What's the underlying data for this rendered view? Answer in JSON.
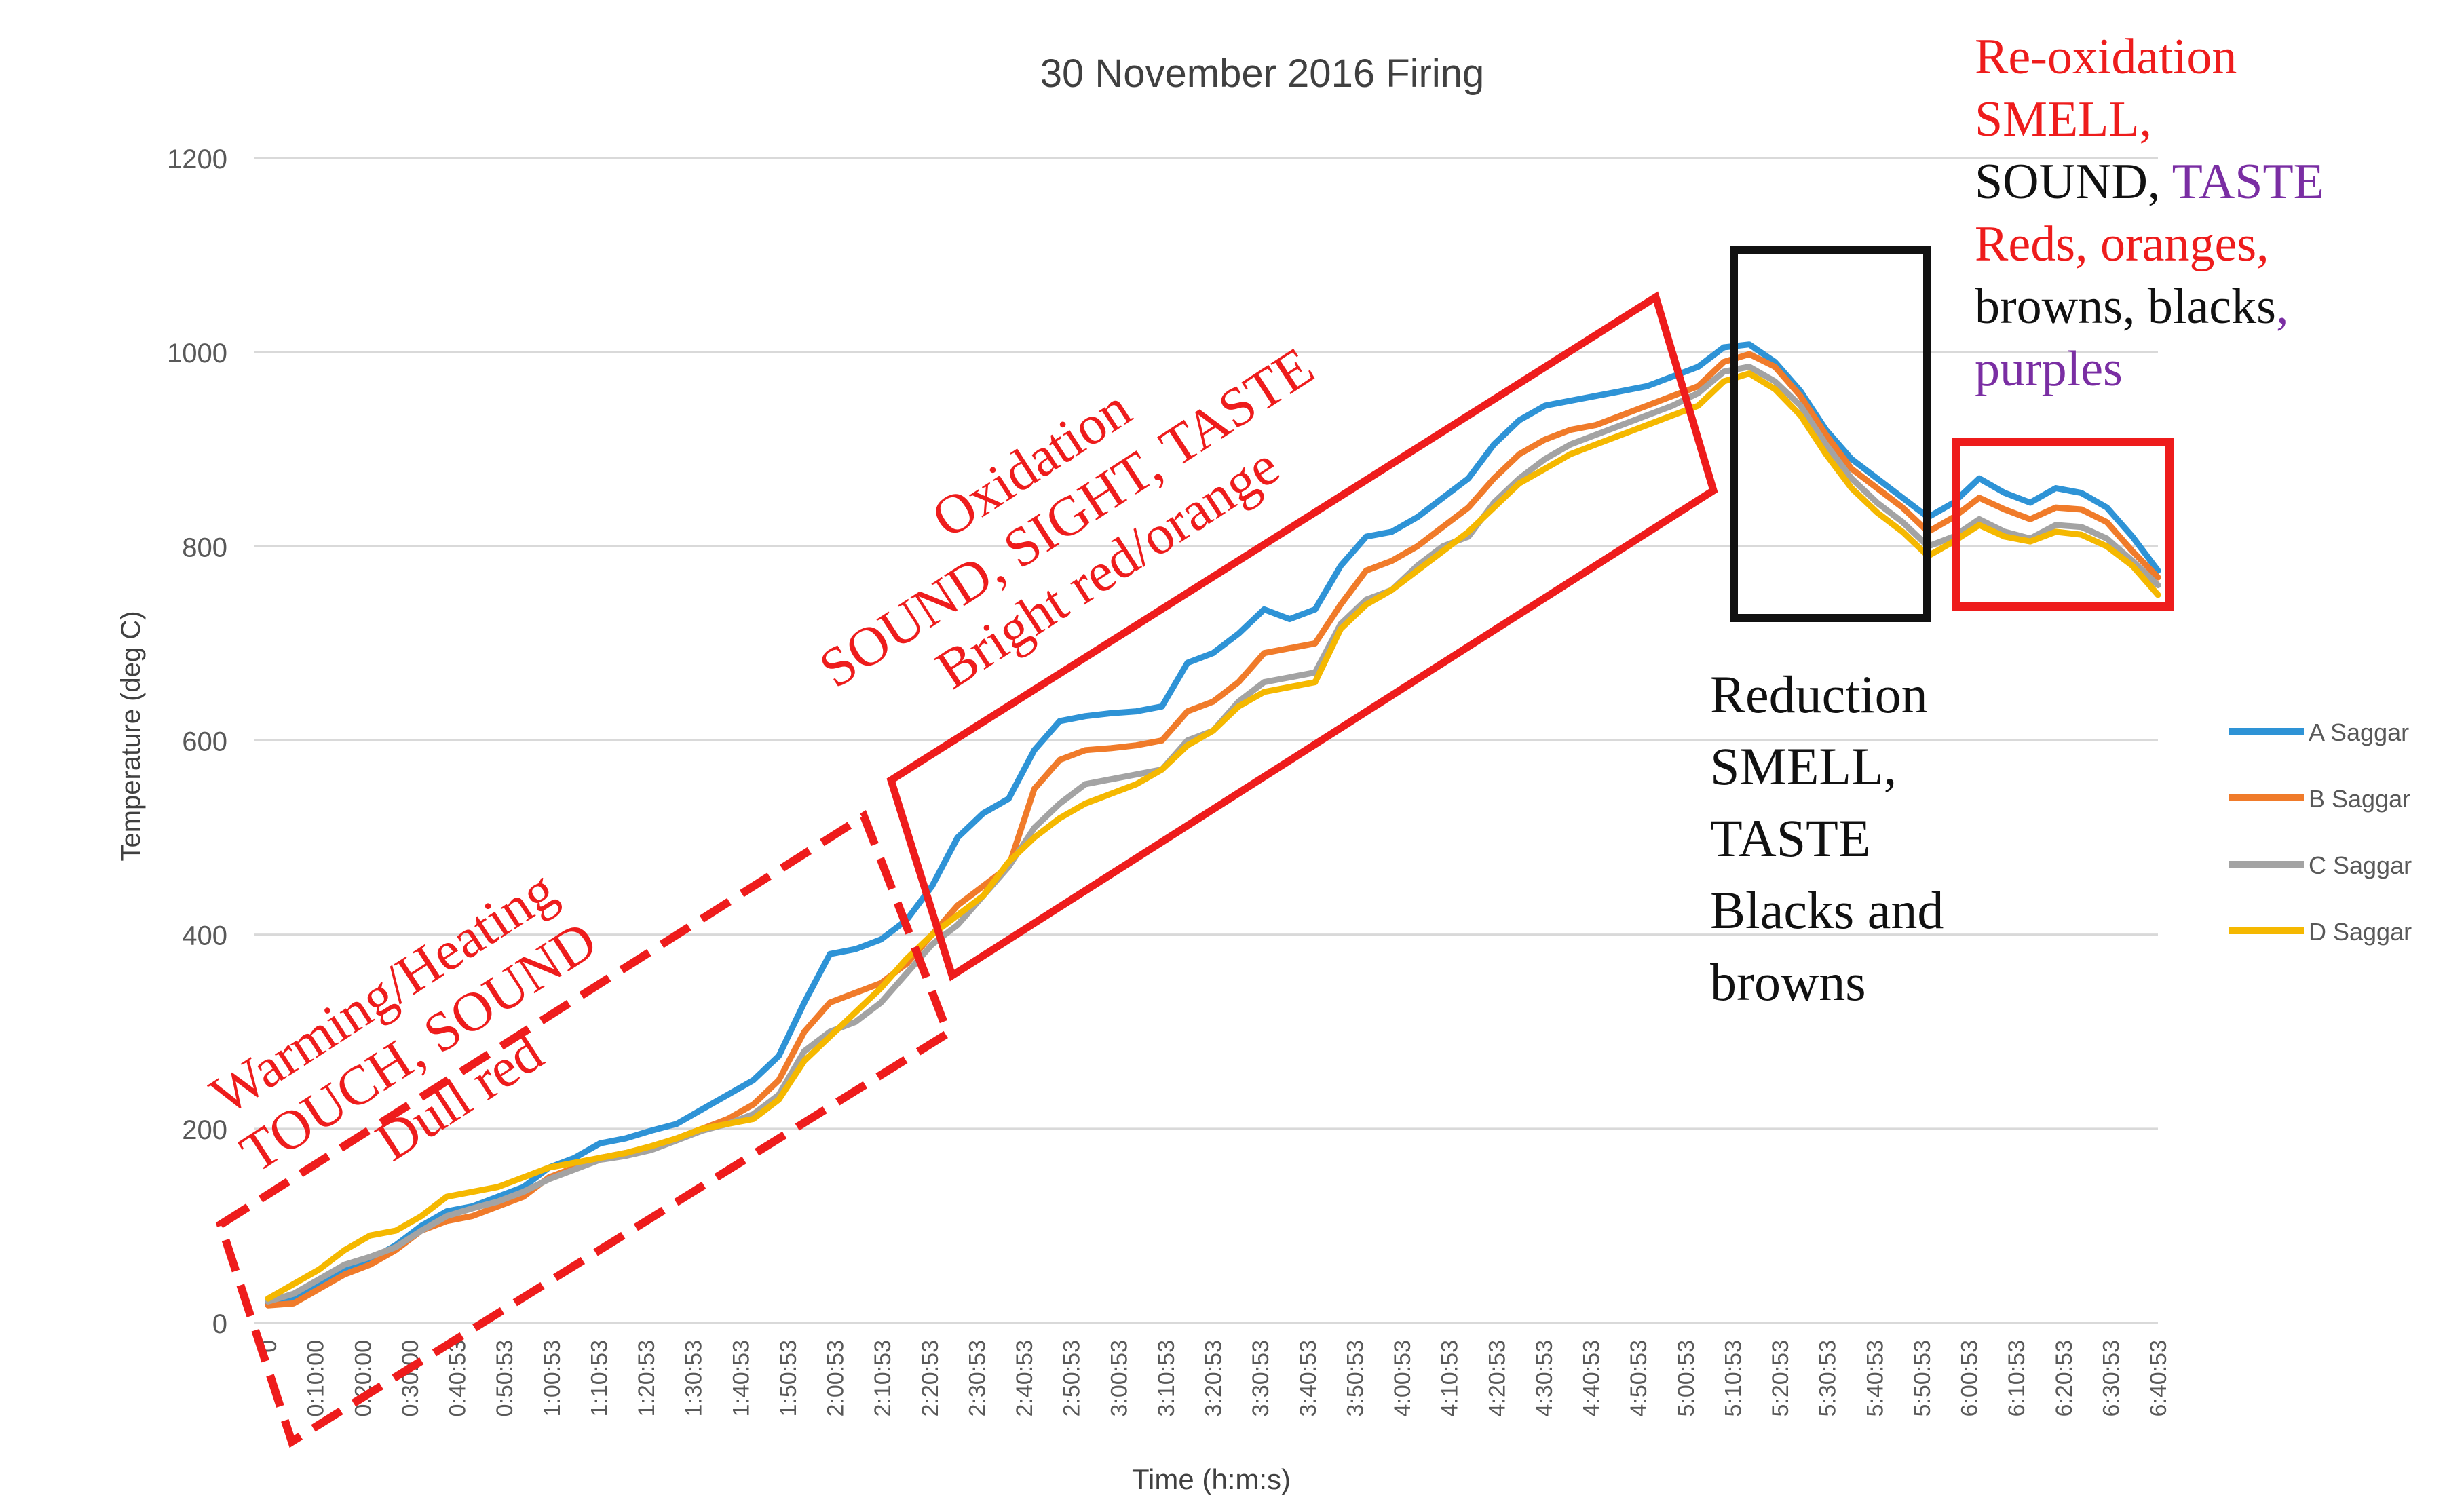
{
  "chart_data": {
    "type": "line",
    "title": "30 November 2016 Firing",
    "xlabel": "Time (h:m:s)",
    "ylabel": "Temperature (deg C)",
    "ylim": [
      0,
      1200
    ],
    "yticks": [
      0,
      200,
      400,
      600,
      800,
      1000,
      1200
    ],
    "grid": true,
    "legend_position": "right",
    "x_tick_labels": [
      "0",
      "0:10:00",
      "0:20:00",
      "0:30:00",
      "0:40:53",
      "0:50:53",
      "1:00:53",
      "1:10:53",
      "1:20:53",
      "1:30:53",
      "1:40:53",
      "1:50:53",
      "2:00:53",
      "2:10:53",
      "2:20:53",
      "2:30:53",
      "2:40:53",
      "2:50:53",
      "3:00:53",
      "3:10:53",
      "3:20:53",
      "3:30:53",
      "3:40:53",
      "3:50:53",
      "4:00:53",
      "4:10:53",
      "4:20:53",
      "4:30:53",
      "4:40:53",
      "4:50:53",
      "5:00:53",
      "5:10:53",
      "5:20:53",
      "5:30:53",
      "5:40:53",
      "5:50:53",
      "6:00:53",
      "6:10:53",
      "6:20:53",
      "6:30:53",
      "6:40:53"
    ],
    "series": [
      {
        "name": "A Saggar",
        "color": "#2e93d6",
        "values": [
          20,
          25,
          40,
          55,
          65,
          80,
          100,
          115,
          120,
          130,
          140,
          160,
          170,
          185,
          190,
          198,
          205,
          220,
          235,
          250,
          275,
          330,
          380,
          385,
          395,
          415,
          450,
          500,
          525,
          540,
          590,
          620,
          625,
          628,
          630,
          635,
          680,
          690,
          710,
          735,
          725,
          735,
          780,
          810,
          815,
          830,
          850,
          870,
          905,
          930,
          945,
          950,
          955,
          960,
          965,
          975,
          985,
          1005,
          1008,
          990,
          960,
          920,
          890,
          870,
          850,
          830,
          845,
          870,
          855,
          845,
          860,
          855,
          840,
          810,
          775
        ]
      },
      {
        "name": "B Saggar",
        "color": "#f07b2a",
        "values": [
          18,
          20,
          35,
          50,
          60,
          75,
          95,
          105,
          110,
          120,
          130,
          150,
          160,
          170,
          175,
          180,
          190,
          200,
          210,
          225,
          250,
          300,
          330,
          340,
          350,
          370,
          400,
          430,
          450,
          470,
          550,
          580,
          590,
          592,
          595,
          600,
          630,
          640,
          660,
          690,
          695,
          700,
          740,
          775,
          785,
          800,
          820,
          840,
          870,
          895,
          910,
          920,
          925,
          935,
          945,
          955,
          965,
          990,
          998,
          985,
          955,
          915,
          880,
          860,
          840,
          815,
          830,
          850,
          838,
          828,
          840,
          838,
          825,
          795,
          768
        ]
      },
      {
        "name": "C Saggar",
        "color": "#a3a3a3",
        "values": [
          22,
          30,
          45,
          60,
          68,
          78,
          95,
          110,
          118,
          125,
          135,
          148,
          158,
          168,
          172,
          178,
          188,
          198,
          205,
          215,
          235,
          280,
          300,
          310,
          330,
          360,
          390,
          410,
          440,
          470,
          510,
          535,
          555,
          560,
          565,
          570,
          600,
          610,
          640,
          660,
          665,
          670,
          720,
          745,
          755,
          780,
          800,
          810,
          845,
          870,
          890,
          905,
          915,
          925,
          935,
          945,
          958,
          980,
          985,
          970,
          945,
          905,
          870,
          845,
          825,
          800,
          810,
          828,
          815,
          808,
          822,
          820,
          808,
          785,
          760
        ]
      },
      {
        "name": "D Saggar",
        "color": "#f5b800",
        "values": [
          25,
          40,
          55,
          75,
          90,
          95,
          110,
          130,
          135,
          140,
          150,
          160,
          165,
          170,
          175,
          182,
          190,
          200,
          205,
          210,
          230,
          270,
          295,
          320,
          345,
          375,
          400,
          420,
          440,
          475,
          500,
          520,
          535,
          545,
          555,
          570,
          595,
          610,
          635,
          650,
          655,
          660,
          715,
          740,
          755,
          775,
          795,
          815,
          840,
          865,
          880,
          895,
          905,
          915,
          925,
          935,
          945,
          970,
          978,
          962,
          935,
          895,
          860,
          835,
          815,
          790,
          805,
          822,
          810,
          805,
          815,
          812,
          800,
          780,
          750
        ]
      }
    ],
    "annotations": [
      {
        "kind": "dashed-box",
        "color": "#ee1c1c",
        "lines": [
          "Warming/Heating",
          "TOUCH, SOUND",
          "Dull red"
        ]
      },
      {
        "kind": "box",
        "color": "#ee1c1c",
        "lines": [
          "Oxidation",
          "SOUND, SIGHT, TASTE",
          "Bright red/orange"
        ]
      },
      {
        "kind": "box",
        "color": "#111111",
        "lines": [
          "Reduction",
          "SMELL,",
          "TASTE",
          "Blacks and",
          "browns"
        ]
      },
      {
        "kind": "box",
        "color": "#ee1c1c",
        "re_ox": {
          "l1": "Re-oxidation",
          "l2": "SMELL,",
          "l3a": "SOUND, ",
          "l3b": "TASTE",
          "l4": "Reds, oranges,",
          "l5a": "browns, blacks",
          "l5b": ",",
          "l6": "purples"
        }
      }
    ]
  },
  "colors": {
    "red": "#ee1c1c",
    "purple": "#7a2ea3",
    "black": "#111111",
    "axis_text": "#595959",
    "grid": "#d9d9d9"
  }
}
